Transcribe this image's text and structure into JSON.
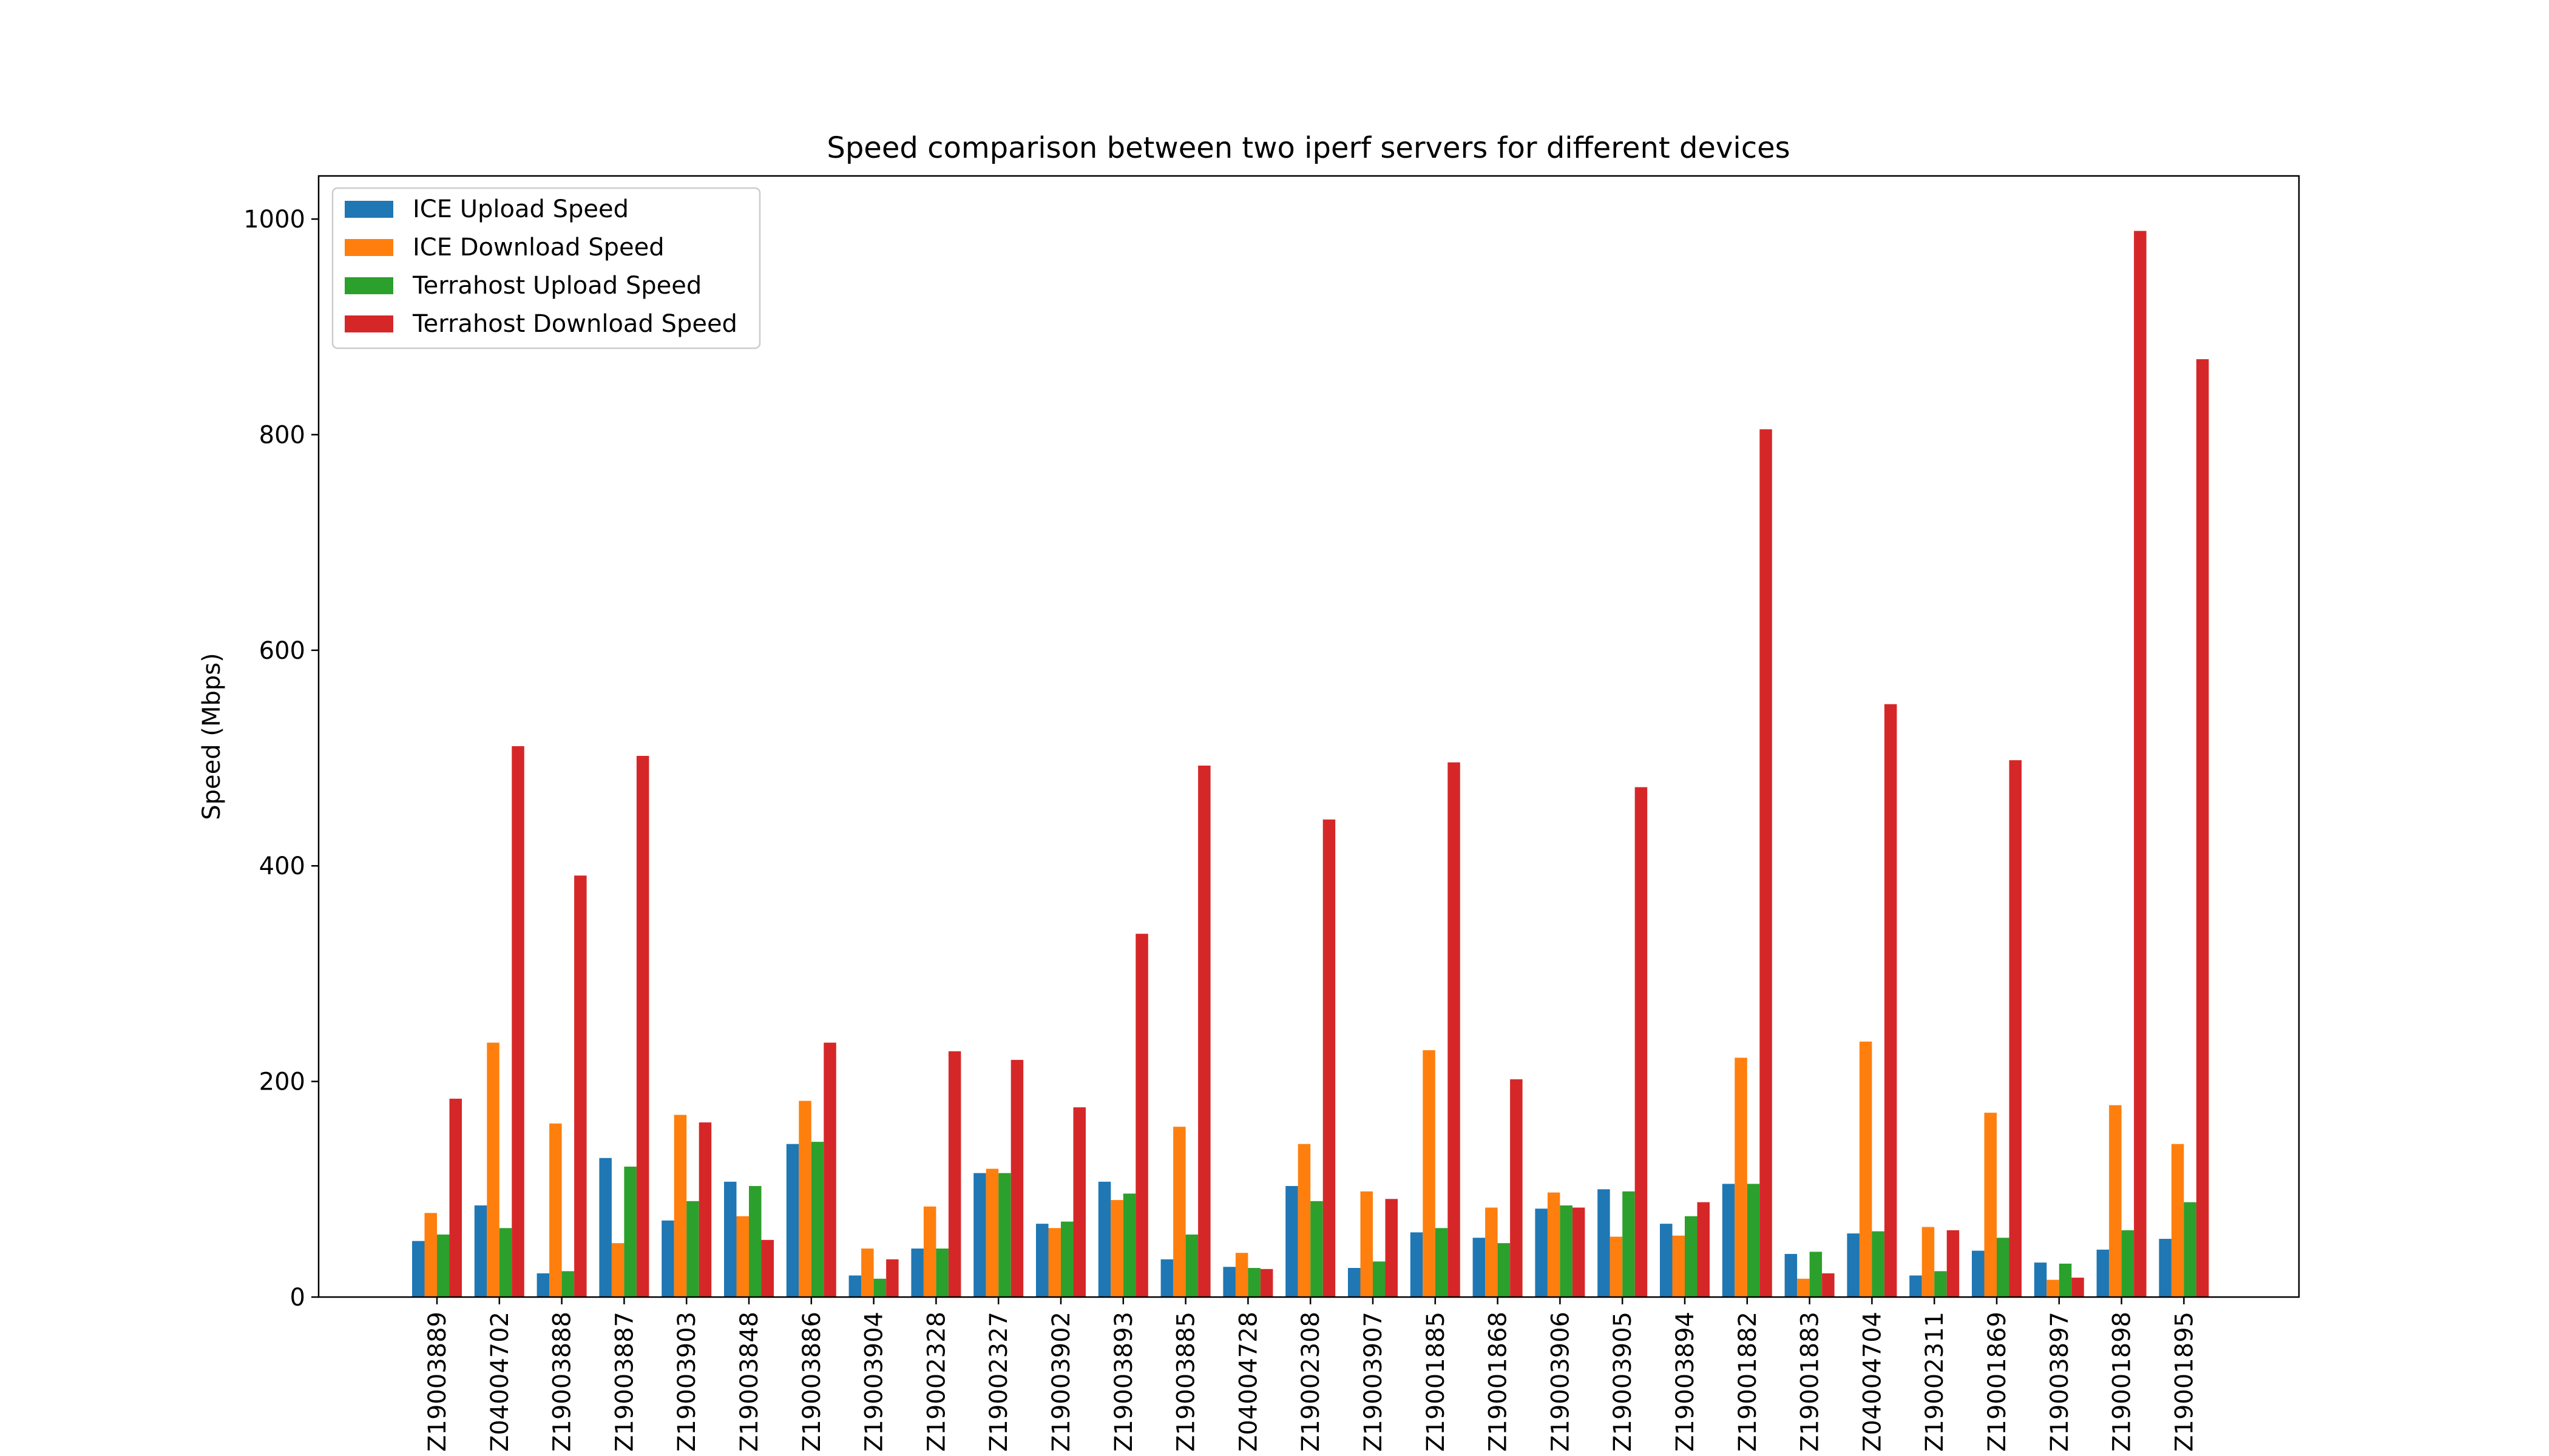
{
  "chart_data": {
    "type": "bar",
    "title": "Speed comparison between two iperf servers for different devices",
    "xlabel": "",
    "ylabel": "Speed (Mbps)",
    "ylim": [
      0,
      1040
    ],
    "yticks": [
      0,
      200,
      400,
      600,
      800,
      1000
    ],
    "grid": false,
    "legend_position": "top-left",
    "categories": [
      "Z19003889",
      "Z04004702",
      "Z19003888",
      "Z19003887",
      "Z19003903",
      "Z19003848",
      "Z19003886",
      "Z19003904",
      "Z19002328",
      "Z19002327",
      "Z19003902",
      "Z19003893",
      "Z19003885",
      "Z04004728",
      "Z19002308",
      "Z19003907",
      "Z19001885",
      "Z19001868",
      "Z19003906",
      "Z19003905",
      "Z19003894",
      "Z19001882",
      "Z19001883",
      "Z04004704",
      "Z19002311",
      "Z19001869",
      "Z19003897",
      "Z19001898",
      "Z19001895"
    ],
    "series": [
      {
        "name": "ICE Upload Speed",
        "color": "#1f77b4",
        "values": [
          52,
          85,
          22,
          129,
          71,
          107,
          142,
          20,
          45,
          115,
          68,
          107,
          35,
          28,
          103,
          27,
          60,
          55,
          82,
          100,
          68,
          105,
          40,
          59,
          20,
          43,
          32,
          44,
          54
        ]
      },
      {
        "name": "ICE Download Speed",
        "color": "#ff7f0e",
        "values": [
          78,
          236,
          161,
          50,
          169,
          75,
          182,
          45,
          84,
          119,
          64,
          90,
          158,
          41,
          142,
          98,
          229,
          83,
          97,
          56,
          57,
          222,
          17,
          237,
          65,
          171,
          16,
          178,
          142
        ]
      },
      {
        "name": "Terrahost Upload Speed",
        "color": "#2ca02c",
        "values": [
          58,
          64,
          24,
          121,
          89,
          103,
          144,
          17,
          45,
          115,
          70,
          96,
          58,
          27,
          89,
          33,
          64,
          50,
          85,
          98,
          75,
          105,
          42,
          61,
          24,
          55,
          31,
          62,
          88
        ]
      },
      {
        "name": "Terrahost Download Speed",
        "color": "#d62728",
        "values": [
          184,
          511,
          391,
          502,
          162,
          53,
          236,
          35,
          228,
          220,
          176,
          337,
          493,
          26,
          443,
          91,
          496,
          202,
          83,
          473,
          88,
          805,
          22,
          550,
          62,
          498,
          18,
          989,
          870
        ]
      }
    ]
  }
}
